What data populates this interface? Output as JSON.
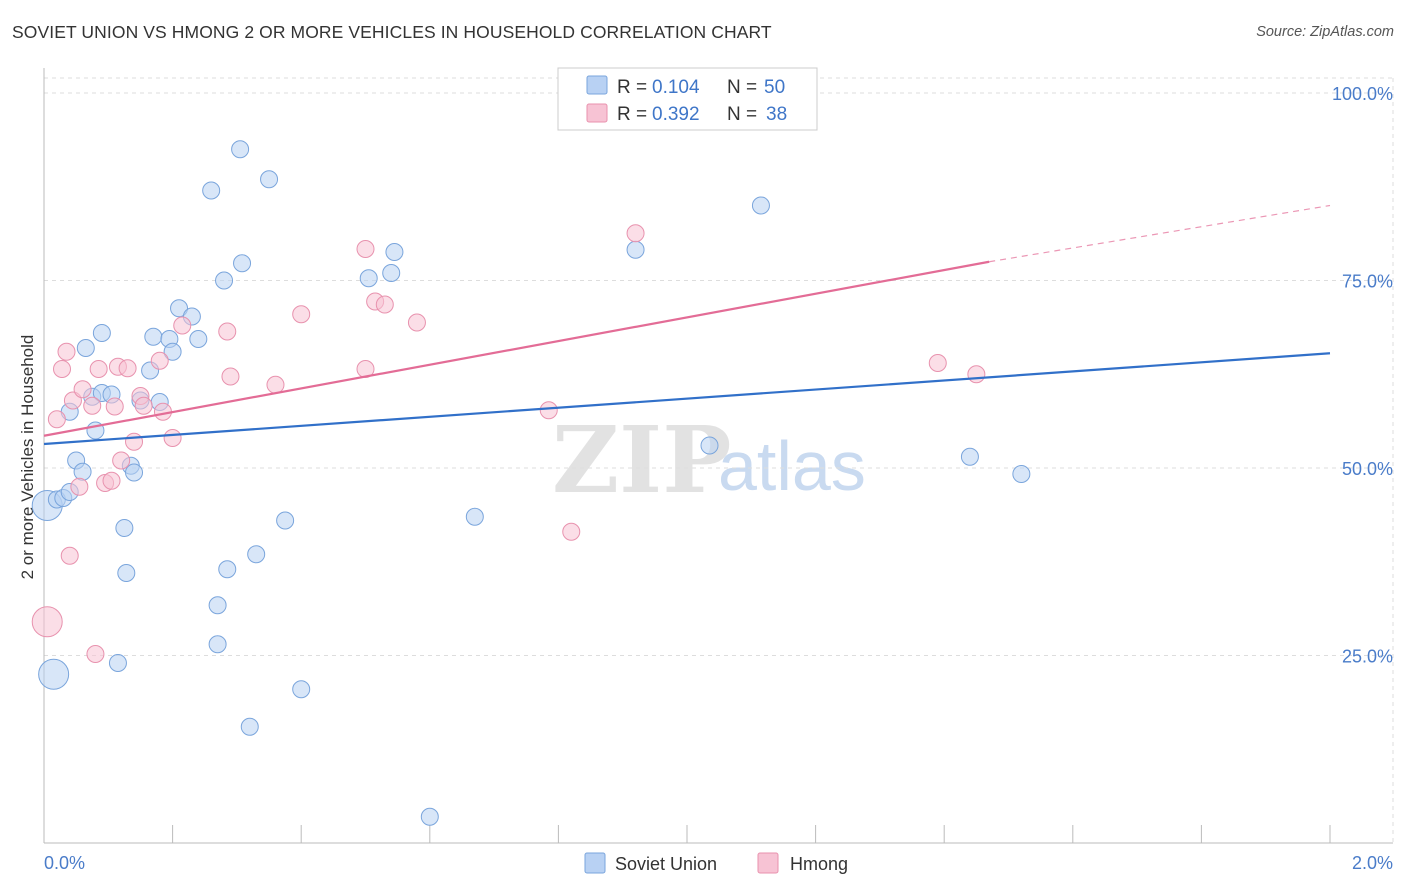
{
  "header": {
    "title": "SOVIET UNION VS HMONG 2 OR MORE VEHICLES IN HOUSEHOLD CORRELATION CHART",
    "source": "Source: ZipAtlas.com"
  },
  "watermark": {
    "zip": "ZIP",
    "atlas": "atlas"
  },
  "colors": {
    "soviet_fill": "#b8d1f3",
    "soviet_stroke": "#7aa5dc",
    "soviet_line": "#3170c9",
    "hmong_fill": "#f7c3d4",
    "hmong_stroke": "#e892ae",
    "hmong_line": "#e36c96",
    "grid": "#dddddd",
    "axis_label": "#4a7cc9"
  },
  "legend": {
    "r_label": "R =",
    "n_label": "N =",
    "series": [
      {
        "name": "Soviet Union",
        "r": "0.104",
        "n": "50"
      },
      {
        "name": "Hmong",
        "r": "0.392",
        "n": "38"
      }
    ]
  },
  "chart_data": {
    "type": "scatter",
    "title": "SOVIET UNION VS HMONG 2 OR MORE VEHICLES IN HOUSEHOLD CORRELATION CHART",
    "xlabel": "",
    "ylabel": "2 or more Vehicles in Household",
    "xlim": [
      0.0,
      2.0
    ],
    "ylim": [
      0.0,
      102.0
    ],
    "x_tick_labels": [
      "0.0%",
      "2.0%"
    ],
    "y_ticks": [
      25,
      50,
      75,
      100
    ],
    "y_tick_labels": [
      "25.0%",
      "50.0%",
      "75.0%",
      "100.0%"
    ],
    "grid": true,
    "legend_position": "top-center",
    "series": [
      {
        "name": "Soviet Union",
        "trend": {
          "x0": 0.0,
          "y0": 53.2,
          "x1": 2.0,
          "y1": 65.3,
          "dashed_from": null
        },
        "points": [
          {
            "x": 0.005,
            "y": 45.0,
            "big": true
          },
          {
            "x": 0.015,
            "y": 22.5,
            "big": true
          },
          {
            "x": 0.02,
            "y": 45.8
          },
          {
            "x": 0.03,
            "y": 46.0
          },
          {
            "x": 0.04,
            "y": 46.8
          },
          {
            "x": 0.04,
            "y": 57.5
          },
          {
            "x": 0.05,
            "y": 51.0
          },
          {
            "x": 0.06,
            "y": 49.5
          },
          {
            "x": 0.065,
            "y": 66.0
          },
          {
            "x": 0.075,
            "y": 59.5
          },
          {
            "x": 0.08,
            "y": 55.0
          },
          {
            "x": 0.09,
            "y": 68.0
          },
          {
            "x": 0.09,
            "y": 60.0
          },
          {
            "x": 0.105,
            "y": 59.8
          },
          {
            "x": 0.115,
            "y": 24.0
          },
          {
            "x": 0.125,
            "y": 42.0
          },
          {
            "x": 0.128,
            "y": 36.0
          },
          {
            "x": 0.135,
            "y": 50.3
          },
          {
            "x": 0.14,
            "y": 49.4
          },
          {
            "x": 0.15,
            "y": 59.0
          },
          {
            "x": 0.165,
            "y": 63.0
          },
          {
            "x": 0.17,
            "y": 67.5
          },
          {
            "x": 0.18,
            "y": 58.8
          },
          {
            "x": 0.195,
            "y": 67.2
          },
          {
            "x": 0.2,
            "y": 65.5
          },
          {
            "x": 0.21,
            "y": 71.3
          },
          {
            "x": 0.23,
            "y": 70.2
          },
          {
            "x": 0.24,
            "y": 67.2
          },
          {
            "x": 0.26,
            "y": 87.0
          },
          {
            "x": 0.27,
            "y": 26.5
          },
          {
            "x": 0.27,
            "y": 31.7
          },
          {
            "x": 0.28,
            "y": 75.0
          },
          {
            "x": 0.285,
            "y": 36.5
          },
          {
            "x": 0.305,
            "y": 92.5
          },
          {
            "x": 0.308,
            "y": 77.3
          },
          {
            "x": 0.32,
            "y": 15.5
          },
          {
            "x": 0.33,
            "y": 38.5
          },
          {
            "x": 0.35,
            "y": 88.5
          },
          {
            "x": 0.375,
            "y": 43.0
          },
          {
            "x": 0.4,
            "y": 20.5
          },
          {
            "x": 0.505,
            "y": 75.3
          },
          {
            "x": 0.54,
            "y": 76.0
          },
          {
            "x": 0.545,
            "y": 78.8
          },
          {
            "x": 0.6,
            "y": 3.5
          },
          {
            "x": 0.67,
            "y": 43.5
          },
          {
            "x": 0.92,
            "y": 79.1
          },
          {
            "x": 1.035,
            "y": 53.0
          },
          {
            "x": 1.115,
            "y": 85.0
          },
          {
            "x": 1.44,
            "y": 51.5
          },
          {
            "x": 1.52,
            "y": 49.2
          }
        ]
      },
      {
        "name": "Hmong",
        "trend": {
          "x0": 0.0,
          "y0": 54.3,
          "x1": 1.47,
          "y1": 77.5,
          "x_dash_end": 2.0,
          "y_dash_end": 85.0
        },
        "points": [
          {
            "x": 0.005,
            "y": 29.5,
            "big": true
          },
          {
            "x": 0.02,
            "y": 56.5
          },
          {
            "x": 0.028,
            "y": 63.2
          },
          {
            "x": 0.035,
            "y": 65.5
          },
          {
            "x": 0.04,
            "y": 38.3
          },
          {
            "x": 0.045,
            "y": 59.0
          },
          {
            "x": 0.055,
            "y": 47.5
          },
          {
            "x": 0.06,
            "y": 60.5
          },
          {
            "x": 0.075,
            "y": 58.3
          },
          {
            "x": 0.08,
            "y": 25.2
          },
          {
            "x": 0.085,
            "y": 63.2
          },
          {
            "x": 0.095,
            "y": 48.0
          },
          {
            "x": 0.105,
            "y": 48.3
          },
          {
            "x": 0.11,
            "y": 58.2
          },
          {
            "x": 0.115,
            "y": 63.5
          },
          {
            "x": 0.12,
            "y": 51.0
          },
          {
            "x": 0.13,
            "y": 63.3
          },
          {
            "x": 0.14,
            "y": 53.5
          },
          {
            "x": 0.15,
            "y": 59.6
          },
          {
            "x": 0.155,
            "y": 58.3
          },
          {
            "x": 0.18,
            "y": 64.3
          },
          {
            "x": 0.185,
            "y": 57.5
          },
          {
            "x": 0.2,
            "y": 54.0
          },
          {
            "x": 0.215,
            "y": 69.0
          },
          {
            "x": 0.285,
            "y": 68.2
          },
          {
            "x": 0.29,
            "y": 62.2
          },
          {
            "x": 0.36,
            "y": 61.1
          },
          {
            "x": 0.4,
            "y": 70.5
          },
          {
            "x": 0.5,
            "y": 63.2
          },
          {
            "x": 0.5,
            "y": 79.2
          },
          {
            "x": 0.515,
            "y": 72.2
          },
          {
            "x": 0.53,
            "y": 71.8
          },
          {
            "x": 0.58,
            "y": 69.4
          },
          {
            "x": 0.785,
            "y": 57.7
          },
          {
            "x": 0.82,
            "y": 41.5
          },
          {
            "x": 0.92,
            "y": 81.3
          },
          {
            "x": 1.39,
            "y": 64.0
          },
          {
            "x": 1.45,
            "y": 62.5
          }
        ]
      }
    ]
  }
}
